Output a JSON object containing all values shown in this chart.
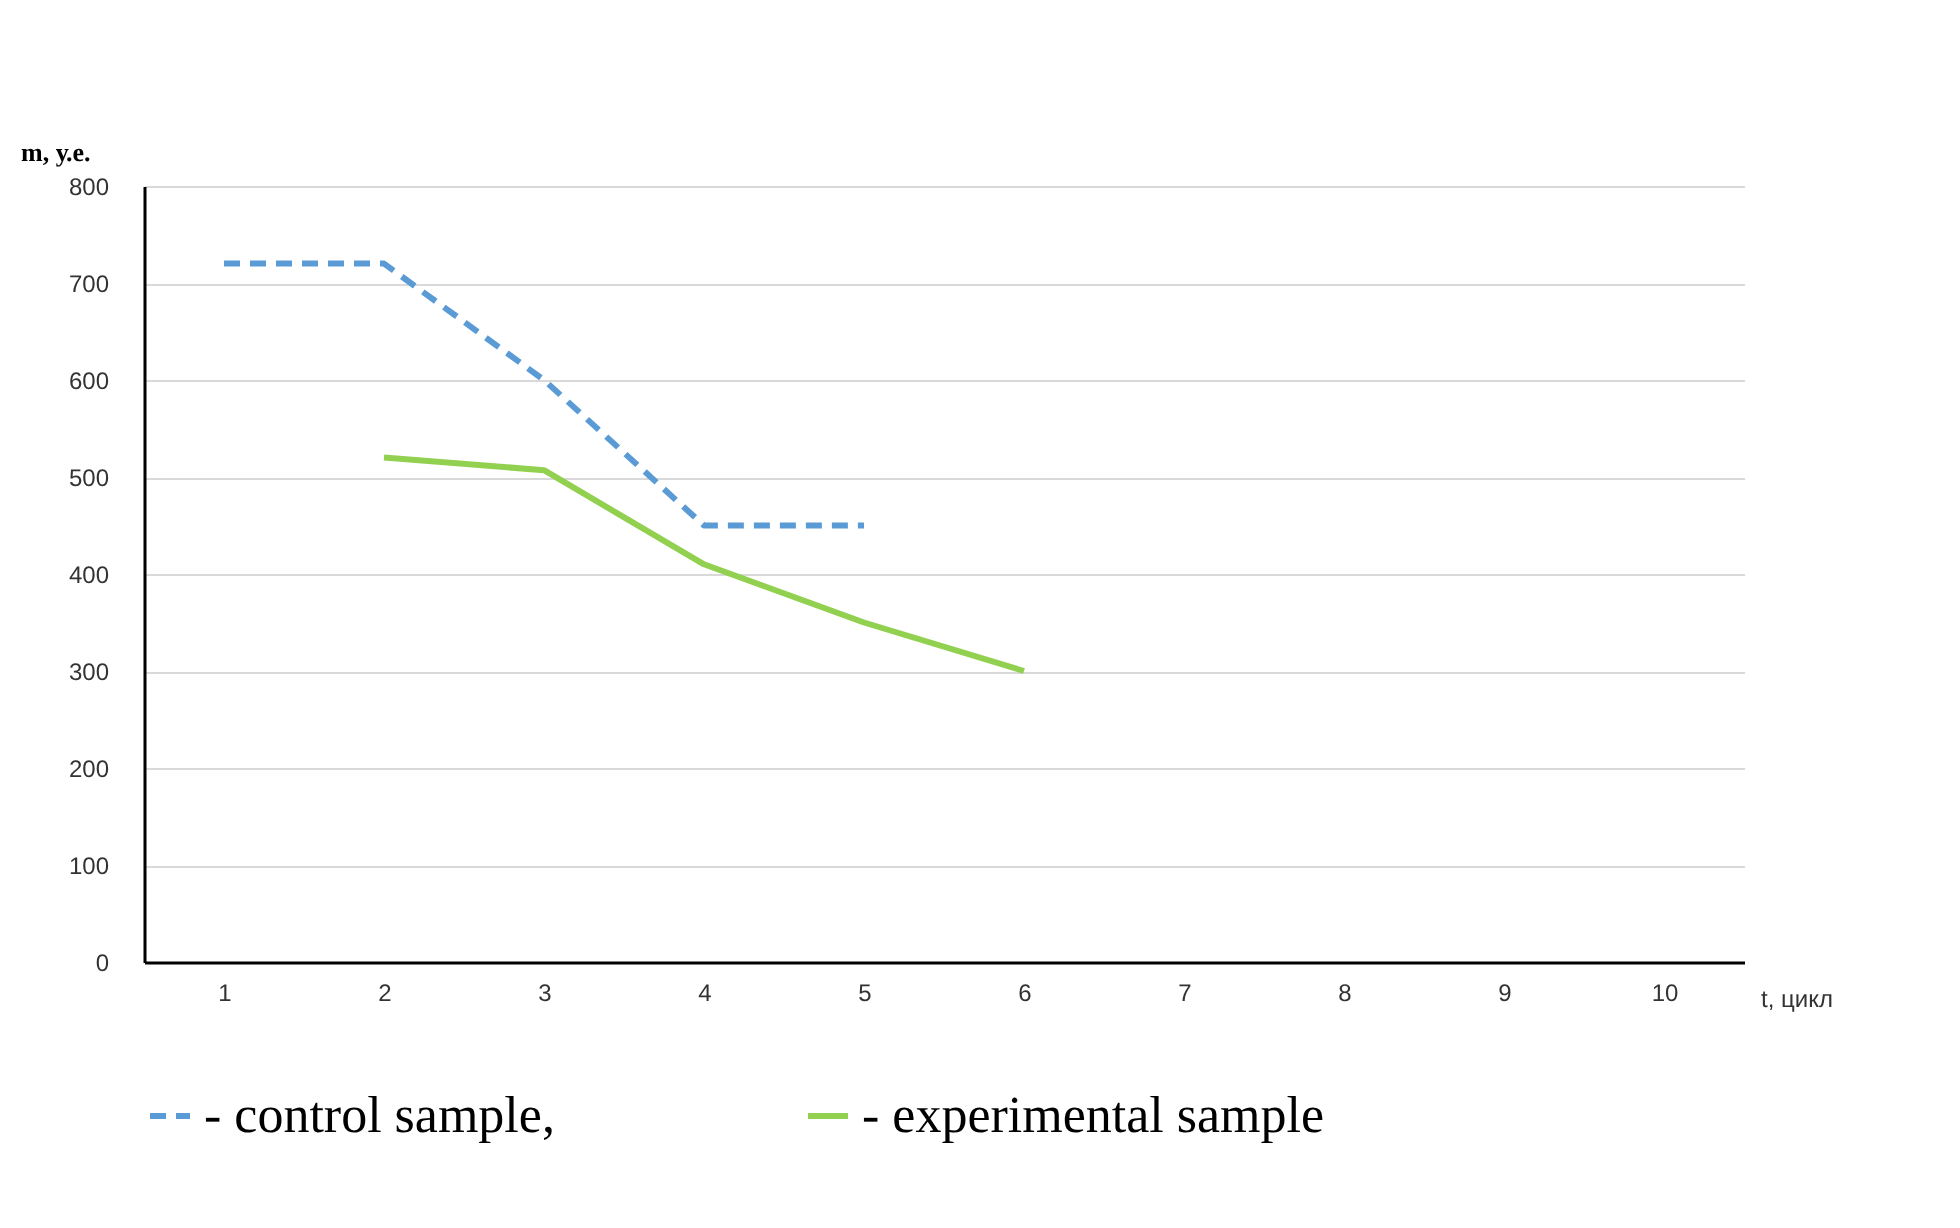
{
  "chart_data": {
    "type": "line",
    "xlabel": "t, цикл",
    "ylabel": "m, у.е.",
    "categories": [
      "1",
      "2",
      "3",
      "4",
      "5",
      "6",
      "7",
      "8",
      "9",
      "10"
    ],
    "series": [
      {
        "name": "- control sample,",
        "color": "#5b9bd5",
        "line_style": "dashed",
        "values": [
          720,
          720,
          600,
          450,
          450,
          null,
          null,
          null,
          null,
          null
        ]
      },
      {
        "name": "- experimental sample",
        "color": "#92d050",
        "line_style": "solid",
        "values": [
          null,
          520,
          507,
          410,
          350,
          300,
          null,
          null,
          null,
          null
        ]
      }
    ],
    "ylim": [
      0,
      800
    ],
    "yticks": [
      0,
      100,
      200,
      300,
      400,
      500,
      600,
      700,
      800
    ],
    "grid": "y",
    "legend": "bottom",
    "marker": "none"
  }
}
